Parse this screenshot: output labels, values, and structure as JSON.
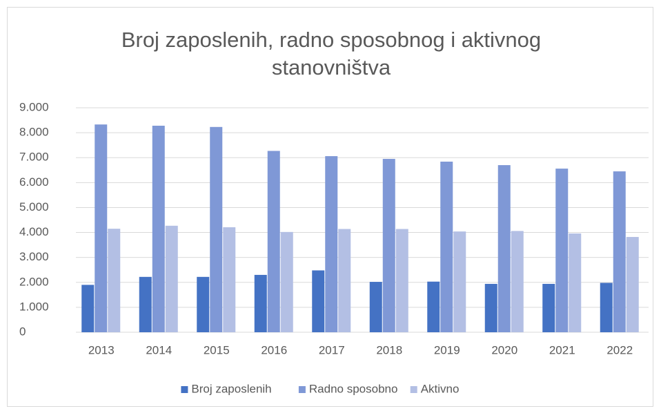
{
  "chart_data": {
    "type": "bar",
    "title": "Broj zaposlenih, radno sposobnog i aktivnog stanovništva",
    "categories": [
      "2013",
      "2014",
      "2015",
      "2016",
      "2017",
      "2018",
      "2019",
      "2020",
      "2021",
      "2022"
    ],
    "series": [
      {
        "name": "Broj zaposlenih",
        "color": "#4472c4",
        "values": [
          1900,
          2220,
          2220,
          2300,
          2480,
          2020,
          2030,
          1940,
          1940,
          1980
        ]
      },
      {
        "name": "Radno sposobno",
        "color": "#7f98d6",
        "values": [
          8330,
          8280,
          8230,
          7270,
          7060,
          6950,
          6840,
          6700,
          6560,
          6450
        ]
      },
      {
        "name": "Aktivno",
        "color": "#b3bfe4",
        "values": [
          4150,
          4270,
          4210,
          4020,
          4140,
          4140,
          4040,
          4060,
          3960,
          3820
        ]
      }
    ],
    "ylim": [
      0,
      9000
    ],
    "yticks": [
      0,
      {
        "value": 1000,
        "label": "1.000"
      },
      {
        "value": 2000,
        "label": "2.000"
      },
      {
        "value": 3000,
        "label": "3.000"
      },
      {
        "value": 4000,
        "label": "4.000"
      },
      {
        "value": 5000,
        "label": "5.000"
      },
      {
        "value": 6000,
        "label": "6.000"
      },
      {
        "value": 7000,
        "label": "7.000"
      },
      {
        "value": 8000,
        "label": "8.000"
      },
      {
        "value": 9000,
        "label": "9.000"
      }
    ],
    "grid": true,
    "legend": "bottom"
  }
}
